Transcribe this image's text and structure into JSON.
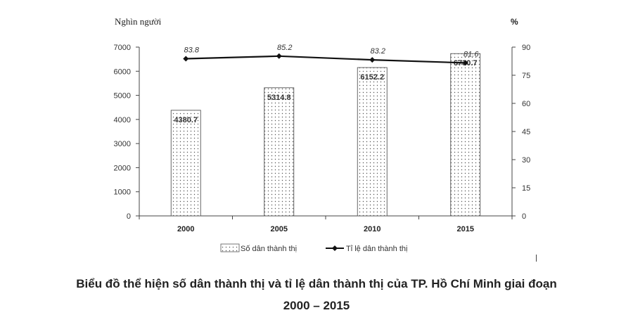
{
  "chart_data": {
    "type": "bar+line",
    "categories": [
      "2000",
      "2005",
      "2010",
      "2015"
    ],
    "series": [
      {
        "name": "Số dân thành thị",
        "type": "bar",
        "axis": "left",
        "values": [
          4380.7,
          5314.8,
          6152.2,
          6730.7
        ],
        "labels": [
          "4380.7",
          "5314.8",
          "6152.2",
          "6730.7"
        ]
      },
      {
        "name": "Tỉ lệ dân thành thị",
        "type": "line",
        "axis": "right",
        "values": [
          83.8,
          85.2,
          83.2,
          81.6
        ],
        "labels": [
          "83.8",
          "85.2",
          "83.2",
          "81.6"
        ]
      }
    ],
    "left_axis": {
      "label": "Nghìn người",
      "range": [
        0,
        7000
      ],
      "ticks": [
        "0",
        "1000",
        "2000",
        "3000",
        "4000",
        "5000",
        "6000",
        "7000"
      ]
    },
    "right_axis": {
      "label": "%",
      "range": [
        0,
        90
      ],
      "ticks": [
        "0",
        "15",
        "30",
        "45",
        "60",
        "75",
        "90"
      ]
    },
    "grid": false,
    "legend_position": "bottom",
    "colors": {
      "bar_fill": "#ffffff",
      "bar_dots": "#555555",
      "bar_stroke": "#555555",
      "line": "#111111",
      "axis": "#444444"
    }
  },
  "caption": {
    "line1": "Biểu đồ thể hiện số dân thành thị và tỉ lệ dân thành thị của TP. Hồ Chí Minh giai đoạn",
    "line2": "2000 – 2015"
  }
}
